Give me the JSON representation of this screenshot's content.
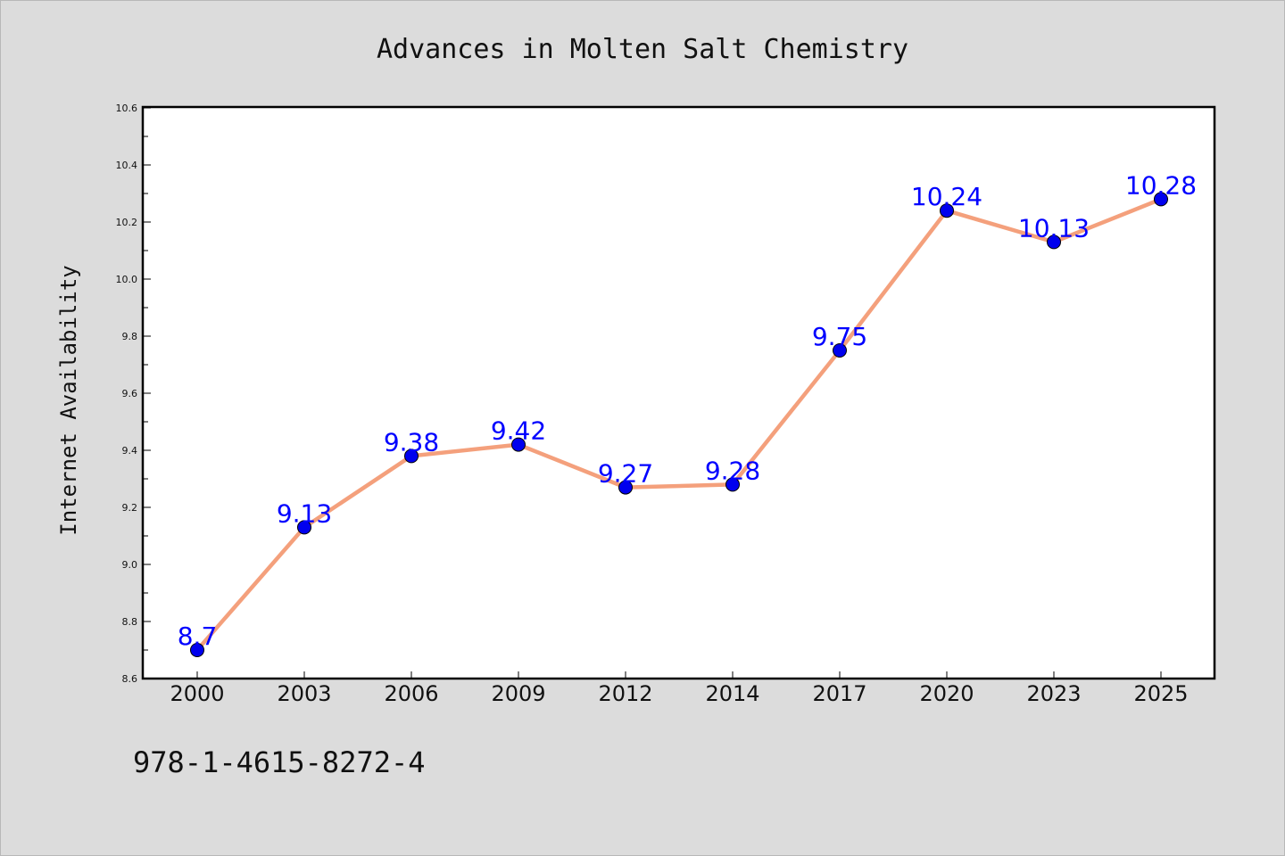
{
  "chart_data": {
    "type": "line",
    "title": "Advances in Molten Salt Chemistry",
    "xlabel": "",
    "ylabel": "Internet Availability",
    "categories": [
      "2000",
      "2003",
      "2006",
      "2009",
      "2012",
      "2014",
      "2017",
      "2020",
      "2023",
      "2025"
    ],
    "series": [
      {
        "values": [
          8.7,
          9.13,
          9.38,
          9.42,
          9.27,
          9.28,
          9.75,
          10.24,
          10.13,
          10.28
        ],
        "data_labels": [
          "8.7",
          "9.13",
          "9.38",
          "9.42",
          "9.27",
          "9.28",
          "9.75",
          "10.24",
          "10.13",
          "10.28"
        ],
        "line_color": "#f4a07c",
        "marker_color": "#0000ee"
      }
    ],
    "ylim": [
      8.6,
      10.6
    ],
    "yticks": [
      "8.6",
      "8.8",
      "9.0",
      "9.2",
      "9.4",
      "9.6",
      "9.8",
      "10.0",
      "10.2",
      "10.4",
      "10.6"
    ],
    "grid": false,
    "label_color": "#0000ff"
  },
  "footer": {
    "isbn": "978-1-4615-8272-4"
  }
}
